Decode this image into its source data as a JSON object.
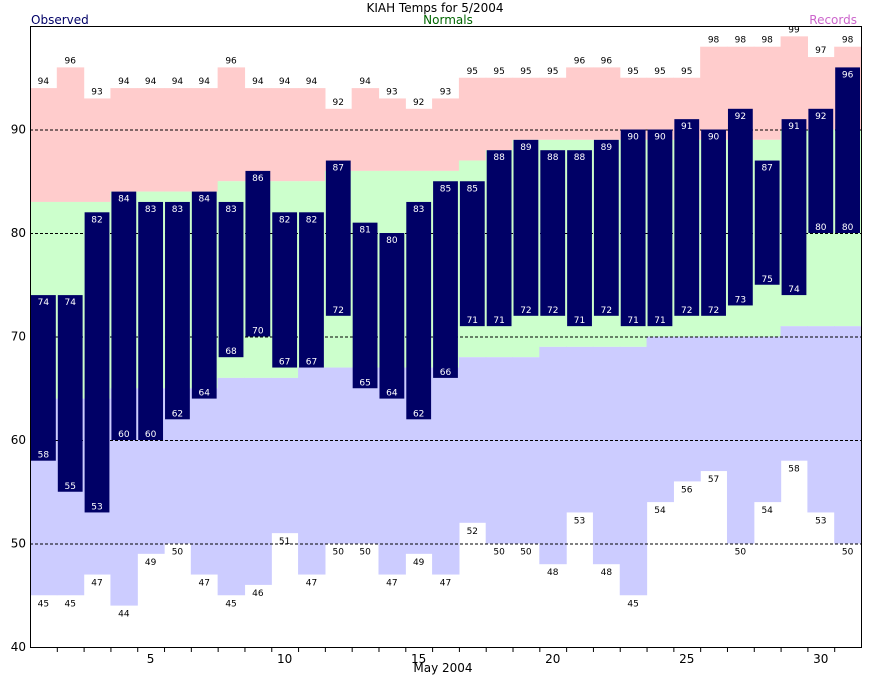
{
  "chart_data": {
    "type": "bar",
    "title": "KIAH Temps for 5/2004",
    "xlabel": "May 2004",
    "legend": {
      "observed": "Observed",
      "normals": "Normals",
      "records": "Records"
    },
    "ylim": [
      40,
      100
    ],
    "yticks": [
      40,
      50,
      60,
      70,
      80,
      90
    ],
    "xticks": [
      5,
      10,
      15,
      20,
      25,
      30
    ],
    "grid": true,
    "colors": {
      "observed_bar": "#000066",
      "normals_band": "#ccffcc",
      "records_high_band": "#ffcccc",
      "records_low_band": "#ccccff",
      "label_dark": "#000000",
      "label_light": "#ffffff",
      "title_observed": "#000066",
      "title_normals": "#006600",
      "title_records": "#cc66cc"
    },
    "days": [
      1,
      2,
      3,
      4,
      5,
      6,
      7,
      8,
      9,
      10,
      11,
      12,
      13,
      14,
      15,
      16,
      17,
      18,
      19,
      20,
      21,
      22,
      23,
      24,
      25,
      26,
      27,
      28,
      29,
      30,
      31
    ],
    "series": [
      {
        "name": "Observed",
        "kind": "observed_high",
        "values": [
          74,
          74,
          82,
          84,
          83,
          83,
          84,
          83,
          86,
          82,
          82,
          87,
          81,
          80,
          83,
          85,
          85,
          88,
          89,
          88,
          88,
          89,
          90,
          90,
          91,
          90,
          92,
          87,
          91,
          92,
          96
        ]
      },
      {
        "name": "Observed",
        "kind": "observed_low",
        "values": [
          58,
          55,
          53,
          60,
          60,
          62,
          64,
          68,
          70,
          67,
          67,
          72,
          65,
          64,
          62,
          66,
          71,
          71,
          72,
          72,
          71,
          72,
          71,
          71,
          72,
          72,
          73,
          75,
          74,
          80,
          80
        ]
      },
      {
        "name": "Normals",
        "kind": "normal_high",
        "values": [
          83,
          83,
          83,
          84,
          84,
          84,
          84,
          85,
          85,
          85,
          85,
          86,
          86,
          86,
          86,
          86,
          87,
          88,
          89,
          89,
          89,
          89,
          89,
          89,
          89,
          89,
          89,
          89,
          90,
          90,
          90
        ]
      },
      {
        "name": "Normals",
        "kind": "normal_low",
        "values": [
          64,
          64,
          64,
          65,
          65,
          65,
          65,
          66,
          66,
          66,
          67,
          67,
          67,
          67,
          67,
          67,
          68,
          68,
          68,
          69,
          69,
          69,
          69,
          70,
          70,
          70,
          70,
          70,
          71,
          71,
          71
        ]
      },
      {
        "name": "Records",
        "kind": "record_high",
        "values": [
          94,
          96,
          93,
          94,
          94,
          94,
          94,
          96,
          94,
          94,
          94,
          92,
          94,
          93,
          92,
          93,
          95,
          95,
          95,
          95,
          96,
          96,
          95,
          95,
          95,
          98,
          98,
          98,
          99,
          97,
          98
        ]
      },
      {
        "name": "Records",
        "kind": "record_low",
        "values": [
          45,
          45,
          47,
          44,
          49,
          50,
          47,
          45,
          46,
          51,
          47,
          50,
          50,
          47,
          49,
          47,
          52,
          50,
          50,
          48,
          53,
          48,
          45,
          54,
          56,
          57,
          50,
          54,
          58,
          53,
          50
        ]
      }
    ]
  }
}
